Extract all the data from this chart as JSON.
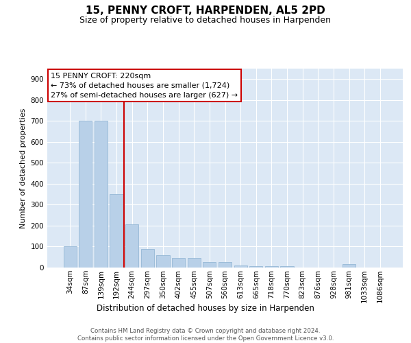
{
  "title": "15, PENNY CROFT, HARPENDEN, AL5 2PD",
  "subtitle": "Size of property relative to detached houses in Harpenden",
  "xlabel": "Distribution of detached houses by size in Harpenden",
  "ylabel": "Number of detached properties",
  "categories": [
    "34sqm",
    "87sqm",
    "139sqm",
    "192sqm",
    "244sqm",
    "297sqm",
    "350sqm",
    "402sqm",
    "455sqm",
    "507sqm",
    "560sqm",
    "613sqm",
    "665sqm",
    "718sqm",
    "770sqm",
    "823sqm",
    "876sqm",
    "928sqm",
    "981sqm",
    "1033sqm",
    "1086sqm"
  ],
  "values": [
    100,
    700,
    700,
    350,
    205,
    90,
    60,
    45,
    45,
    25,
    25,
    10,
    5,
    5,
    5,
    0,
    0,
    0,
    15,
    0,
    0
  ],
  "bar_color": "#b8d0e8",
  "bar_edge_color": "#8ab0d0",
  "vline_x_idx": 3.5,
  "vline_color": "#cc0000",
  "annotation_text": "15 PENNY CROFT: 220sqm\n← 73% of detached houses are smaller (1,724)\n27% of semi-detached houses are larger (627) →",
  "annotation_box_facecolor": "#ffffff",
  "annotation_box_edgecolor": "#cc0000",
  "bg_color": "#dce8f5",
  "footnote": "Contains HM Land Registry data © Crown copyright and database right 2024.\nContains public sector information licensed under the Open Government Licence v3.0.",
  "ylim": [
    0,
    950
  ],
  "yticks": [
    0,
    100,
    200,
    300,
    400,
    500,
    600,
    700,
    800,
    900
  ],
  "title_fontsize": 11,
  "subtitle_fontsize": 9,
  "ylabel_fontsize": 8,
  "xlabel_fontsize": 8.5,
  "tick_fontsize": 7.5,
  "annot_fontsize": 8
}
